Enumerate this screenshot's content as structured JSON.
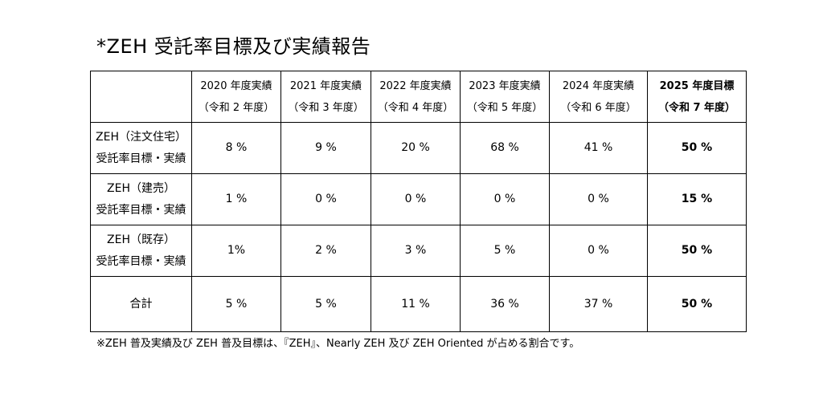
{
  "title": "*ZEH 受託率目標及び実績報告",
  "table": {
    "headers": [
      {
        "year": "",
        "era": ""
      },
      {
        "year": "2020 年度実績",
        "era": "（令和 2 年度）"
      },
      {
        "year": "2021 年度実績",
        "era": "（令和 3 年度）"
      },
      {
        "year": "2022 年度実績",
        "era": "（令和 4 年度）"
      },
      {
        "year": "2023 年度実績",
        "era": "（令和 5 年度）"
      },
      {
        "year": "2024 年度実績",
        "era": "（令和 6 年度）"
      },
      {
        "year": "2025 年度目標",
        "era": "（令和 7 年度）"
      }
    ],
    "rows": [
      {
        "label1": "ZEH（注文住宅）",
        "label2": "受託率目標・実績",
        "values": [
          "8 %",
          "9 %",
          "20 %",
          "68 %",
          "41 %",
          "50 %"
        ]
      },
      {
        "label1": "ZEH（建売）",
        "label2": "受託率目標・実績",
        "values": [
          "1 %",
          "0 %",
          "0 %",
          "0 %",
          "0 %",
          "15 %"
        ]
      },
      {
        "label1": "ZEH（既存）",
        "label2": "受託率目標・実績",
        "values": [
          "1%",
          "2 %",
          "3 %",
          "5 %",
          "0 %",
          "50 %"
        ]
      }
    ],
    "total": {
      "label": "合計",
      "values": [
        "5 %",
        "5 %",
        "11 %",
        "36 %",
        "37 %",
        "50 %"
      ]
    }
  },
  "footnote": "※ZEH 普及実績及び ZEH 普及目標は、『ZEH』、Nearly ZEH 及び ZEH Oriented が占める割合です。"
}
